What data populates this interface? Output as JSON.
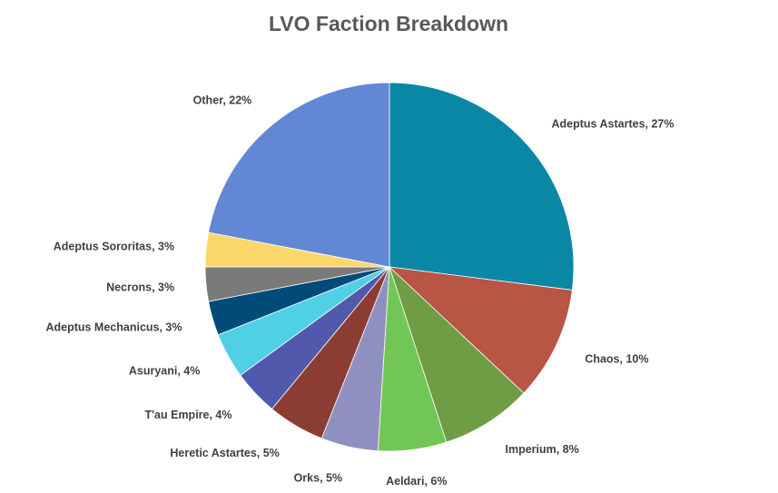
{
  "chart_data": {
    "type": "pie",
    "title": "LVO Faction Breakdown",
    "slices": [
      {
        "label": "Adeptus Astartes, 27%",
        "value": 27,
        "color": "#0B87A6"
      },
      {
        "label": "Chaos, 10%",
        "value": 10,
        "color": "#B85544"
      },
      {
        "label": "Imperium, 8%",
        "value": 8,
        "color": "#6E9D46"
      },
      {
        "label": "Aeldari, 6%",
        "value": 6,
        "color": "#72C655"
      },
      {
        "label": "Orks, 5%",
        "value": 5,
        "color": "#9090C0"
      },
      {
        "label": "Heretic Astartes, 5%",
        "value": 5,
        "color": "#8B3C33"
      },
      {
        "label": "T'au Empire, 4%",
        "value": 4,
        "color": "#5159AC"
      },
      {
        "label": "Asuryani, 4%",
        "value": 4,
        "color": "#4FD0E4"
      },
      {
        "label": "Adeptus Mechanicus, 3%",
        "value": 3,
        "color": "#004B78"
      },
      {
        "label": "Necrons, 3%",
        "value": 3,
        "color": "#7A7A7A"
      },
      {
        "label": "Adeptus Sororitas, 3%",
        "value": 3,
        "color": "#FCD76A"
      },
      {
        "label": "Other, 22%",
        "value": 22,
        "color": "#6287D5"
      }
    ],
    "start": "12 o'clock",
    "direction": "clockwise",
    "legend": "none"
  }
}
